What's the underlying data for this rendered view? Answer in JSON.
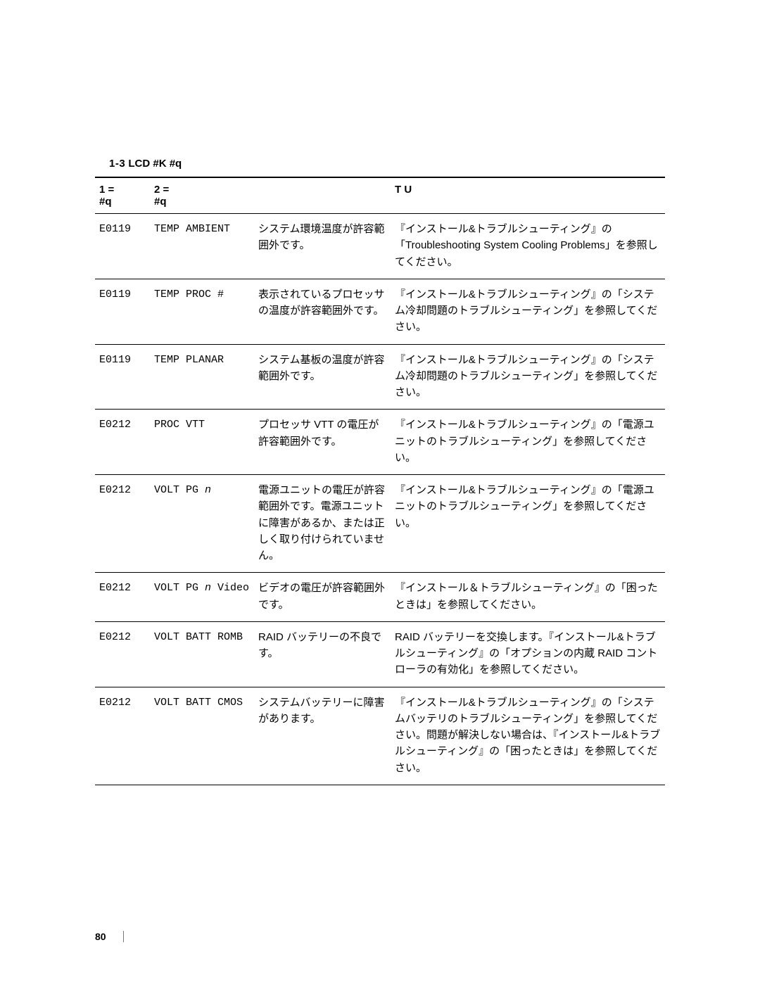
{
  "title_prefix": "1-3",
  "title_main": "LCD",
  "title_suffix": " #K   #q",
  "header_col1_line1": "1 =",
  "header_col1_line2": "#q",
  "header_col2_line1": "2 =",
  "header_col2_line2": "#q",
  "header_col3": "",
  "header_col4": "T U",
  "rows": [
    {
      "code": "E0119",
      "label": "TEMP AMBIENT",
      "desc": "システム環境温度が許容範囲外です。",
      "action": "『インストール&トラブルシューティング』の「Troubleshooting System Cooling Problems」を参照してください。"
    },
    {
      "code": "E0119",
      "label": "TEMP PROC #",
      "desc": "表示されているプロセッサの温度が許容範囲外です。",
      "action": "『インストール&トラブルシューティング』の「システム冷却問題のトラブルシューティング」を参照してください。"
    },
    {
      "code": "E0119",
      "label": "TEMP PLANAR",
      "desc": "システム基板の温度が許容範囲外です。",
      "action": "『インストール&トラブルシューティング』の「システム冷却問題のトラブルシューティング」を参照してください。"
    },
    {
      "code": "E0212",
      "label": "PROC VTT",
      "desc": "プロセッサ VTT の電圧が許容範囲外です。",
      "action": "『インストール&トラブルシューティング』の「電源ユニットのトラブルシューティング」を参照してください。"
    },
    {
      "code": "E0212",
      "label_html": "VOLT PG <span class=\"italic\">n</span>",
      "desc": "電源ユニットの電圧が許容範囲外です。電源ユニットに障害があるか、または正しく取り付けられていません。",
      "action": "『インストール&トラブルシューティング』の「電源ユニットのトラブルシューティング」を参照してください。"
    },
    {
      "code": "E0212",
      "label_html": "VOLT PG <span class=\"italic\">n</span> Video",
      "desc": "ビデオの電圧が許容範囲外です。",
      "action": "『インストール＆トラブルシューティング』の「困ったときは」を参照してください。"
    },
    {
      "code": "E0212",
      "label": "VOLT BATT ROMB",
      "desc": "RAID バッテリーの不良です。",
      "action": "RAID バッテリーを交換します。『インストール&トラブルシューティング』の「オプションの内蔵 RAID コントローラの有効化」を参照してください。"
    },
    {
      "code": "E0212",
      "label": "VOLT BATT CMOS",
      "desc": "システムバッテリーに障害があります。",
      "action": "『インストール&トラブルシューティング』の「システムバッテリのトラブルシューティング」を参照してください。問題が解決しない場合は、『インストール&トラブルシューティング』の「困ったときは」を参照してください。"
    }
  ],
  "page_number": "80"
}
